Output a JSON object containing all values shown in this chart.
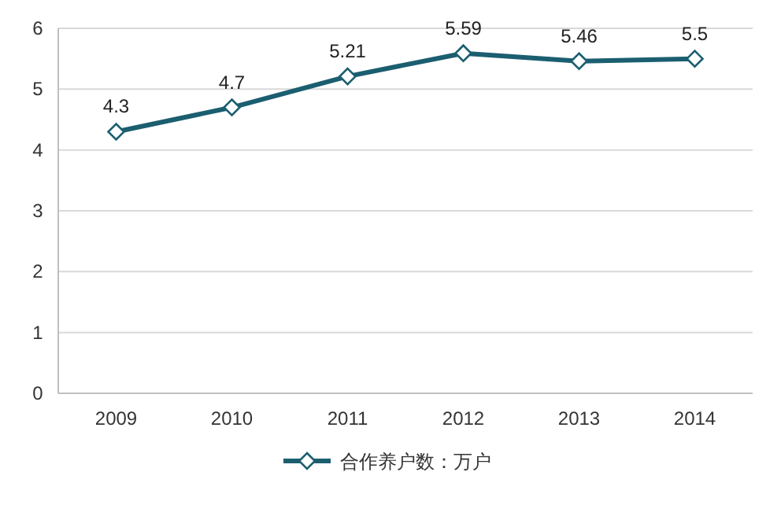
{
  "chart_data": {
    "type": "line",
    "categories": [
      "2009",
      "2010",
      "2011",
      "2012",
      "2013",
      "2014"
    ],
    "series": [
      {
        "name": "合作养户数：万户",
        "color": "#1b5e70",
        "values": [
          4.3,
          4.7,
          5.21,
          5.59,
          5.46,
          5.5
        ]
      }
    ],
    "ylim": [
      0,
      6
    ],
    "yticks": [
      0,
      1,
      2,
      3,
      4,
      5,
      6
    ],
    "grid": "y",
    "legend": "bottom",
    "marker": "diamond",
    "data_labels": true
  }
}
